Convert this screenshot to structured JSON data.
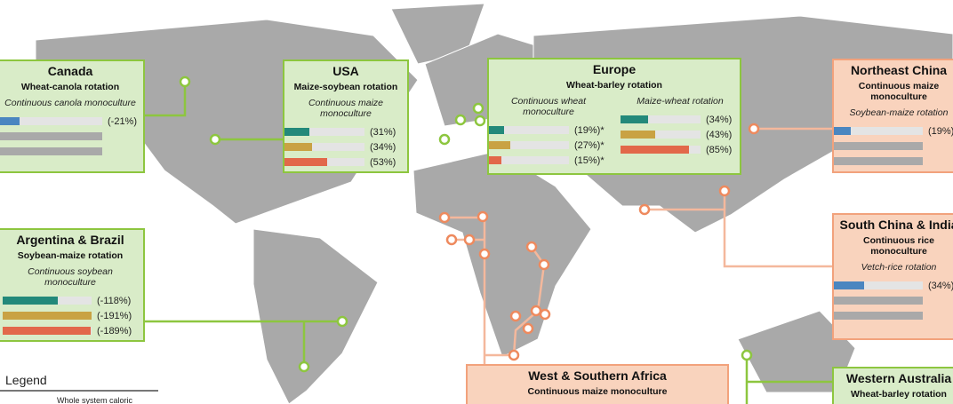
{
  "legend": {
    "title": "Legend",
    "items": [
      "Whole system caloric"
    ]
  },
  "regions": [
    {
      "name": "Canada",
      "rotation": "Wheat-canola rotation",
      "comparisons": [
        {
          "label": "Continuous canola monoculture",
          "values": [
            -21
          ],
          "value_labels": [
            "(-21%)"
          ],
          "colors": [
            "#4a86c0"
          ]
        }
      ]
    },
    {
      "name": "USA",
      "rotation": "Maize-soybean rotation",
      "comparisons": [
        {
          "label": "Continuous maize monoculture",
          "values": [
            31,
            34,
            53
          ],
          "value_labels": [
            "(31%)",
            "(34%)",
            "(53%)"
          ],
          "colors": [
            "#23897a",
            "#c9a243",
            "#e2684a"
          ]
        }
      ]
    },
    {
      "name": "Europe",
      "rotation": "Wheat-barley rotation",
      "comparisons": [
        {
          "label": "Continuous wheat monoculture",
          "values": [
            19,
            27,
            15
          ],
          "value_labels": [
            "(19%)*",
            "(27%)*",
            "(15%)*"
          ],
          "colors": [
            "#23897a",
            "#c9a243",
            "#e2684a"
          ]
        },
        {
          "label": "Maize-wheat rotation",
          "values": [
            34,
            43,
            85
          ],
          "value_labels": [
            "(34%)",
            "(43%)",
            "(85%)"
          ],
          "colors": [
            "#23897a",
            "#c9a243",
            "#e2684a"
          ]
        }
      ]
    },
    {
      "name": "Northeast China",
      "rotation": "Continuous maize monoculture",
      "comparisons": [
        {
          "label": "Soybean-maize rotation",
          "values": [
            19
          ],
          "value_labels": [
            "(19%)"
          ],
          "colors": [
            "#4a86c0"
          ]
        }
      ]
    },
    {
      "name": "Argentina & Brazil",
      "rotation": "Soybean-maize rotation",
      "comparisons": [
        {
          "label": "Continuous soybean monoculture",
          "values": [
            -118,
            -191,
            -189
          ],
          "value_labels": [
            "(-118%)",
            "(-191%)",
            "(-189%)"
          ],
          "colors": [
            "#23897a",
            "#c9a243",
            "#e2684a"
          ]
        }
      ]
    },
    {
      "name": "South China & India",
      "rotation": "Continuous rice monoculture",
      "comparisons": [
        {
          "label": "Vetch-rice rotation",
          "values": [
            34
          ],
          "value_labels": [
            "(34%)"
          ],
          "colors": [
            "#4a86c0"
          ]
        }
      ]
    },
    {
      "name": "West & Southern Africa",
      "rotation": "Continuous maize monoculture",
      "comparisons": []
    },
    {
      "name": "Western Australia",
      "rotation": "Wheat-barley rotation",
      "comparisons": []
    }
  ]
}
